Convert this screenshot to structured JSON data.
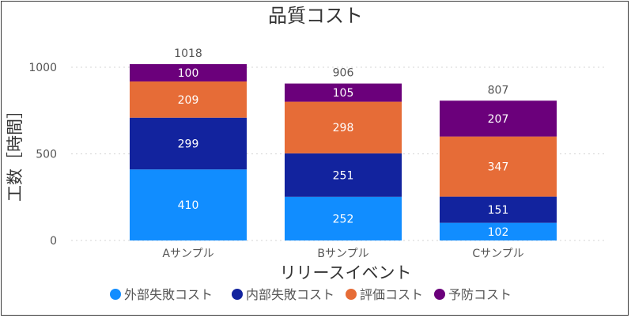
{
  "chart_data": {
    "type": "bar",
    "stacked": true,
    "title": "品質コスト",
    "xlabel": "リリースイベント",
    "ylabel": "工数［時間］",
    "categories": [
      "Aサンプル",
      "Bサンプル",
      "Cサンプル"
    ],
    "series": [
      {
        "name": "外部失敗コスト",
        "color": "#118DFF",
        "values": [
          410,
          252,
          102
        ]
      },
      {
        "name": "内部失敗コスト",
        "color": "#12239E",
        "values": [
          299,
          251,
          151
        ]
      },
      {
        "name": "評価コスト",
        "color": "#E66C37",
        "values": [
          209,
          298,
          347
        ]
      },
      {
        "name": "予防コスト",
        "color": "#6B007B",
        "values": [
          100,
          105,
          207
        ]
      }
    ],
    "totals": [
      1018,
      906,
      807
    ],
    "ylim": [
      0,
      1000
    ],
    "yticks": [
      0,
      500,
      1000
    ],
    "grid": true,
    "legend_position": "bottom"
  }
}
